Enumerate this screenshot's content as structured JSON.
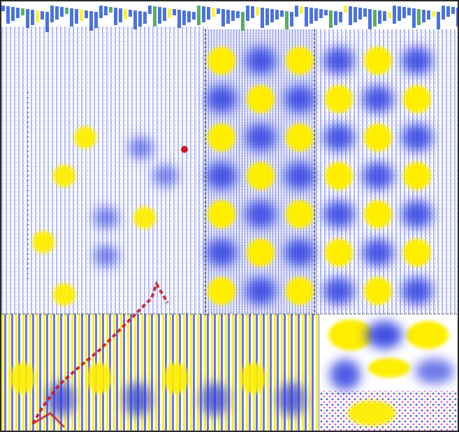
{
  "image": {
    "palette": {
      "background": "#ffffff",
      "blue": "#2f3fe0",
      "yellow": "#ffee00",
      "dark": "#222222",
      "red": "#c81a2a",
      "header_blue": "#1d4fd8",
      "header_green": "#2e9a3a"
    }
  }
}
